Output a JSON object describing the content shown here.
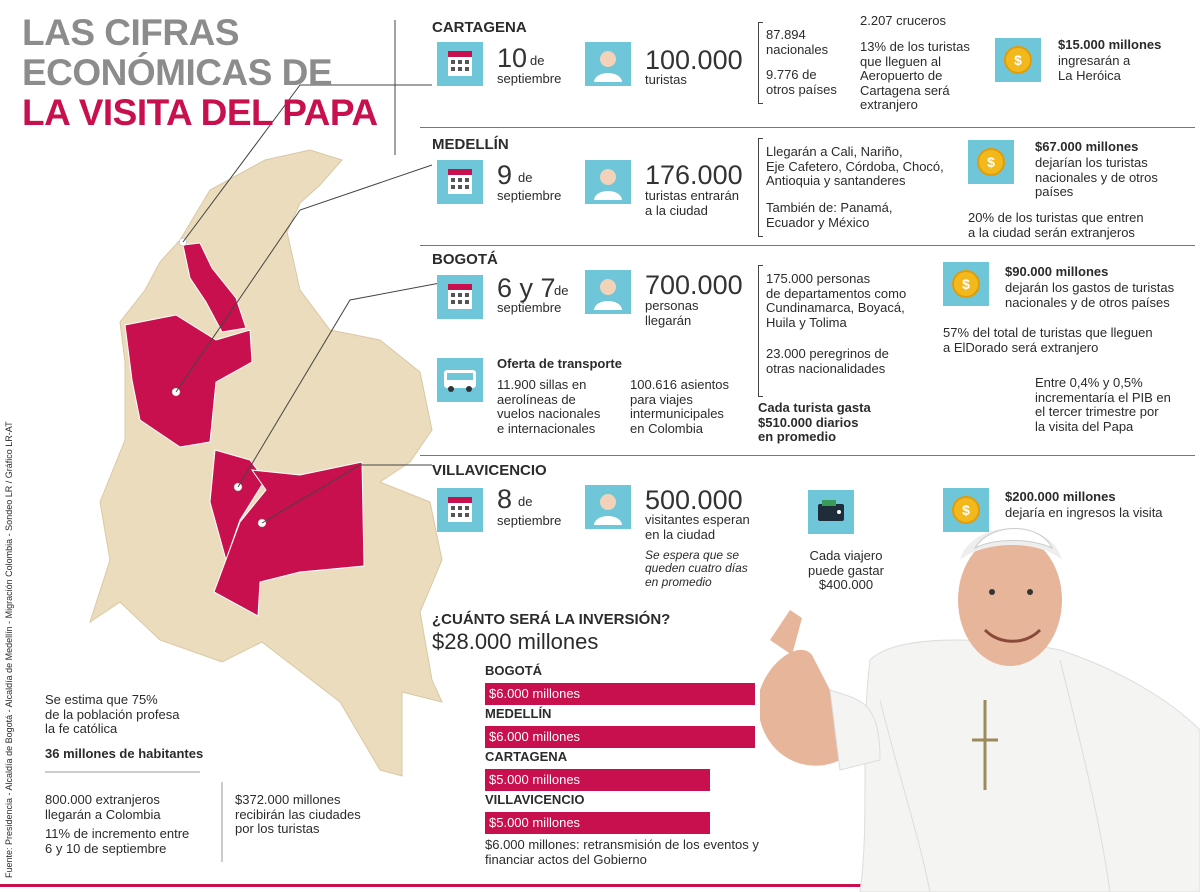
{
  "header": {
    "title": [
      "LAS CIFRAS",
      "ECONÓMICAS DE",
      "LA VISITA DEL PAPA"
    ]
  },
  "cartagena": {
    "name": "CARTAGENA",
    "day": "10",
    "de": "de",
    "month": "septiembre",
    "visitors": "100.000",
    "visitors_note": "turistas",
    "origin": [
      "87.894\nnacionales",
      "9.776 de\notros países"
    ],
    "cruises": "2.207 cruceros",
    "foreign": "13% de los turistas\nque lleguen al\nAeropuerto de\nCartagena será\nextranjero",
    "income": "$15.000 millones",
    "income_note": "ingresarán a\nLa Heróica"
  },
  "medellin": {
    "name": "MEDELLÍN",
    "day": "9",
    "de": "de",
    "month": "septiembre",
    "visitors": "176.000",
    "visitors_note": "turistas entrarán\na la ciudad",
    "origin": [
      "Llegarán a Cali, Nariño,\nEje Cafetero, Córdoba, Chocó,\nAntioquia y santanderes",
      "También de: Panamá,\nEcuador y México"
    ],
    "income": "$67.000 millones",
    "income_note": "dejarían los turistas\nnacionales y de otros\npaíses",
    "foreign": "20% de los turistas que entren\na la ciudad serán extranjeros"
  },
  "bogota": {
    "name": "BOGOTÁ",
    "day": "6 y 7",
    "de": "de",
    "month": "septiembre",
    "visitors": "700.000",
    "visitors_note": "personas\nllegarán",
    "origin": [
      "175.000 personas\nde departamentos como\nCundinamarca, Boyacá,\nHuila y Tolima",
      "23.000 peregrinos de\notras nacionalidades"
    ],
    "income": "$90.000 millones",
    "income_note": "dejarán los gastos de turistas\nnacionales y de otros países",
    "foreign": "57% del total de turistas que lleguen\na ElDorado será extranjero",
    "transport_title": "Oferta de transporte",
    "transport": [
      "11.900 sillas en\naerolíneas de\nvuelos nacionales\ne internacionales",
      "100.616 asientos\npara viajes\nintermunicipales\nen Colombia"
    ],
    "spend": "Cada turista gasta\n$510.000 diarios\nen promedio",
    "gdp": "Entre 0,4% y 0,5%\nincrementaría el PIB en\nel tercer trimestre por\nla visita del Papa"
  },
  "villavicencio": {
    "name": "VILLAVICENCIO",
    "day": "8",
    "de": "de",
    "month": "septiembre",
    "visitors": "500.000",
    "visitors_note": "visitantes esperan\nen la ciudad",
    "stay": "Se espera que se\nqueden cuatro días\nen promedio",
    "spend": "Cada viajero\npuede gastar\n$400.000",
    "income": "$200.000 millones",
    "income_note": "dejaría en ingresos la visita"
  },
  "investment": {
    "title": "¿CUÁNTO SERÁ LA INVERSIÓN?",
    "total": "$28.000 millones",
    "items": [
      {
        "city": "BOGOTÁ",
        "value": 6000,
        "label": "$6.000 millones"
      },
      {
        "city": "MEDELLÍN",
        "value": 6000,
        "label": "$6.000 millones"
      },
      {
        "city": "CARTAGENA",
        "value": 5000,
        "label": "$5.000 millones"
      },
      {
        "city": "VILLAVICENCIO",
        "value": 5000,
        "label": "$5.000 millones"
      }
    ],
    "note": "$6.000 millones: retransmisión de los eventos y\nfinanciar actos del Gobierno"
  },
  "national": {
    "faith": "Se estima que 75%\nde la población profesa\nla fe católica",
    "population": "36 millones de habitantes",
    "foreigners": "800.000 extranjeros\nllegarán a Colombia",
    "increase": "11% de incremento entre\n6 y 10 de septiembre",
    "cities_income": "$372.000 millones\nrecibirán las ciudades\npor los turistas"
  },
  "source": "Fuente: Presidencia - Alcaldía de Bogotá - Alcaldía de Medellín - Migración Colombia - Sondeo LR / Gráfico LR-AT"
}
